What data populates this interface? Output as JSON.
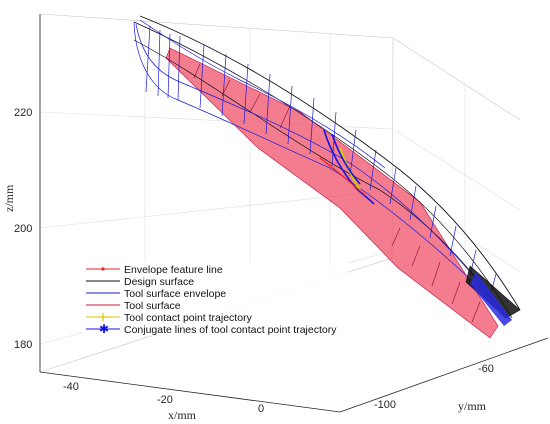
{
  "chart_data": {
    "type": "3d-line-surface",
    "xlabel": "x/mm",
    "ylabel": "y/mm",
    "zlabel": "z/mm",
    "x_ticks": [
      "-40",
      "-20",
      "0"
    ],
    "y_ticks": [
      "-100",
      "-60"
    ],
    "z_ticks": [
      "180",
      "200",
      "220"
    ],
    "grid": true,
    "legend_position": "lower-left",
    "series": [
      {
        "name": "Envelope feature line",
        "color": "#e8202a",
        "marker": "dot"
      },
      {
        "name": "Design surface",
        "color": "#000000",
        "marker": "none"
      },
      {
        "name": "Tool surface envelope",
        "color": "#1a1adc",
        "marker": "none"
      },
      {
        "name": "Tool surface",
        "color": "#d2184a",
        "marker": "none"
      },
      {
        "name": "Tool contact point trajectory",
        "color": "#d8c400",
        "marker": "plus"
      },
      {
        "name": "Conjugate lines of tool contact point trajectory",
        "color": "#1414e6",
        "marker": "asterisk"
      }
    ]
  }
}
